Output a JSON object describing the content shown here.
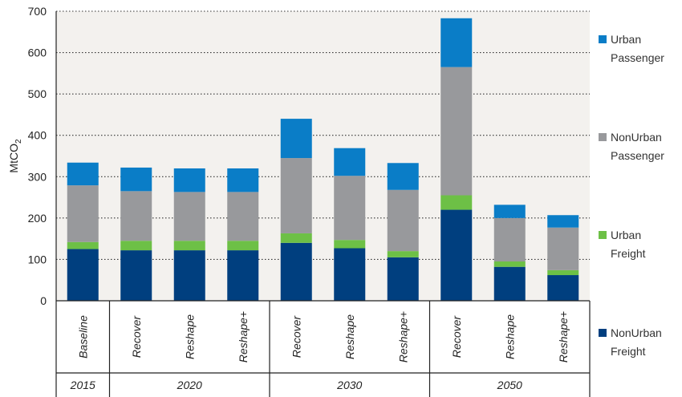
{
  "chart_data": {
    "type": "bar",
    "stacked": true,
    "ylabel": "MtCO",
    "ylabel_sub": "2",
    "ylim": [
      0,
      700
    ],
    "yticks": [
      0,
      100,
      200,
      300,
      400,
      500,
      600,
      700
    ],
    "grid": "horizontal-dotted",
    "legend_position": "right",
    "categories": [
      "Baseline",
      "Recover",
      "Reshape",
      "Reshape+",
      "Recover",
      "Reshape",
      "Reshape+",
      "Recover",
      "Reshape",
      "Reshape+"
    ],
    "groups": [
      {
        "label": "2015",
        "count": 1
      },
      {
        "label": "2020",
        "count": 3
      },
      {
        "label": "2030",
        "count": 3
      },
      {
        "label": "2050",
        "count": 3
      }
    ],
    "series": [
      {
        "name": "NonUrban Freight",
        "legend_lines": [
          "NonUrban",
          "Freight"
        ],
        "color": "#003f7f",
        "values": [
          125,
          122,
          122,
          122,
          140,
          127,
          105,
          220,
          82,
          62
        ]
      },
      {
        "name": "Urban Freight",
        "legend_lines": [
          "Urban",
          "Freight"
        ],
        "color": "#6dc046",
        "values": [
          17,
          23,
          23,
          23,
          23,
          20,
          15,
          35,
          13,
          12
        ]
      },
      {
        "name": "NonUrban Passenger",
        "legend_lines": [
          "NonUrban",
          "Passenger"
        ],
        "color": "#98999c",
        "values": [
          137,
          120,
          118,
          118,
          182,
          155,
          148,
          310,
          105,
          103
        ]
      },
      {
        "name": "Urban Passenger",
        "legend_lines": [
          "Urban",
          "Passenger"
        ],
        "color": "#0a7dc7",
        "values": [
          55,
          57,
          57,
          57,
          95,
          67,
          65,
          118,
          32,
          30
        ]
      }
    ]
  }
}
